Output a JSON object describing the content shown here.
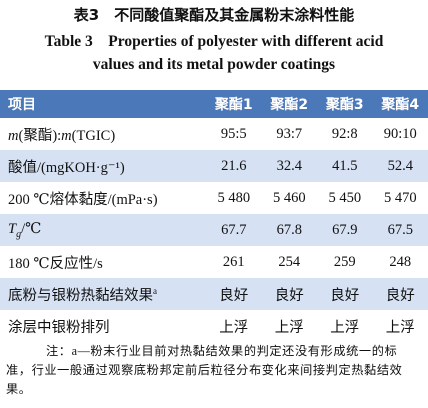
{
  "caption": {
    "chinese": "表3　不同酸值聚酯及其金属粉末涂料性能",
    "english": [
      "Table 3　Properties of polyester with different acid",
      "values and its metal powder coatings"
    ]
  },
  "table": {
    "header": [
      "项目",
      "聚酯1",
      "聚酯2",
      "聚酯3",
      "聚酯4"
    ],
    "rows": [
      [
        [
          "m",
          "(聚酯):",
          "m",
          "(TGIC)"
        ],
        "95:5",
        "93:7",
        "92:8",
        "90:10"
      ],
      [
        "酸值/(mgKOH·g⁻¹)",
        "21.6",
        "32.4",
        "41.5",
        "52.4"
      ],
      [
        "200 ℃熔体黏度/(mPa·s)",
        "5 480",
        "5 460",
        "5 450",
        "5 470"
      ],
      [
        [
          "T",
          "g",
          "/℃"
        ],
        "67.7",
        "67.8",
        "67.9",
        "67.5"
      ],
      [
        "180 ℃反应性/s",
        "261",
        "254",
        "259",
        "248"
      ],
      [
        [
          "底粉与银粉热黏结效果",
          "a"
        ],
        "良好",
        "良好",
        "良好",
        "良好"
      ],
      [
        "涂层中银粉排列",
        "上浮",
        "上浮",
        "上浮",
        "上浮"
      ]
    ]
  },
  "note": "注：a—粉末行业目前对热黏结效果的判定还没有形成统一的标准，行业一般通过观察底粉邦定前后粒径分布变化来间接判定热黏结效果。"
}
